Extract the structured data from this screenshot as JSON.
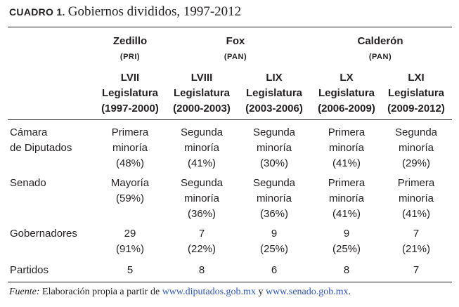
{
  "title": {
    "tag": "CUADRO 1.",
    "text": "Gobiernos divididos, 1997-2012"
  },
  "presidents": [
    {
      "name": "Zedillo",
      "party": "(PRI)"
    },
    {
      "name": "Fox",
      "party": "(PAN)"
    },
    {
      "name": "Calderón",
      "party": "(PAN)"
    }
  ],
  "legislatures": [
    {
      "number": "LVII",
      "word": "Legislatura",
      "years": "(1997-2000)"
    },
    {
      "number": "LVIII",
      "word": "Legislatura",
      "years": "(2000-2003)"
    },
    {
      "number": "LIX",
      "word": "Legislatura",
      "years": "(2003-2006)"
    },
    {
      "number": "LX",
      "word": "Legislatura",
      "years": "(2006-2009)"
    },
    {
      "number": "LXI",
      "word": "Legislatura",
      "years": "(2009-2012)"
    }
  ],
  "rows": [
    {
      "label": [
        "Cámara",
        "de Diputados"
      ],
      "cells": [
        [
          "Primera",
          "minoría",
          "(48%)"
        ],
        [
          "Segunda",
          "minoría",
          "(41%)"
        ],
        [
          "Segunda",
          "minoría",
          "(30%)"
        ],
        [
          "Primera",
          "minoría",
          "(41%)"
        ],
        [
          "Segunda",
          "minoría",
          "(29%)"
        ]
      ]
    },
    {
      "label": [
        "Senado"
      ],
      "cells": [
        [
          "Mayoría",
          "(59%)"
        ],
        [
          "Segunda",
          "minoría",
          "(36%)"
        ],
        [
          "Segunda",
          "minoría",
          "(36%)"
        ],
        [
          "Primera",
          "minoría",
          "(41%)"
        ],
        [
          "Primera",
          "minoría",
          "(41%)"
        ]
      ]
    },
    {
      "label": [
        "Gobernadores"
      ],
      "cells": [
        [
          "29",
          "(91%)"
        ],
        [
          "7",
          "(22%)"
        ],
        [
          "9",
          "(25%)"
        ],
        [
          "9",
          "(25%)"
        ],
        [
          "7",
          "(21%)"
        ]
      ]
    },
    {
      "label": [
        "Partidos"
      ],
      "cells": [
        [
          "5"
        ],
        [
          "8"
        ],
        [
          "6"
        ],
        [
          "8"
        ],
        [
          "7"
        ]
      ]
    }
  ],
  "source": {
    "label": "Fuente:",
    "text": "Elaboración propia a partir de",
    "link1": "www.diputados.gob.mx",
    "conj": "y",
    "link2": "www.senado.gob.mx",
    "end": "."
  }
}
